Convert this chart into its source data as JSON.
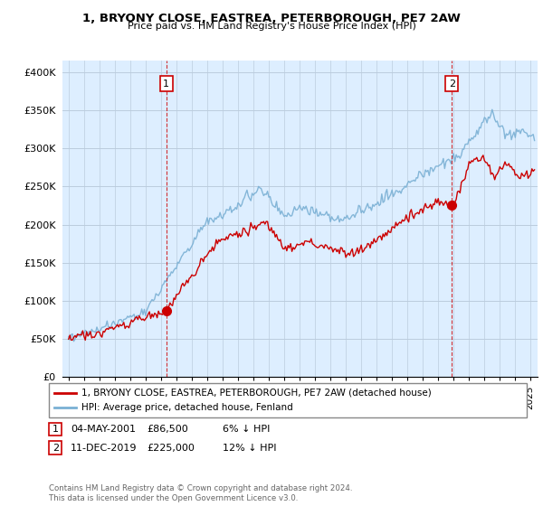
{
  "title": "1, BRYONY CLOSE, EASTREA, PETERBOROUGH, PE7 2AW",
  "subtitle": "Price paid vs. HM Land Registry's House Price Index (HPI)",
  "ylabel_ticks": [
    "£0",
    "£50K",
    "£100K",
    "£150K",
    "£200K",
    "£250K",
    "£300K",
    "£350K",
    "£400K"
  ],
  "ytick_vals": [
    0,
    50000,
    100000,
    150000,
    200000,
    250000,
    300000,
    350000,
    400000
  ],
  "ylim": [
    0,
    415000
  ],
  "xlim_start": 1994.6,
  "xlim_end": 2025.5,
  "legend_line1": "1, BRYONY CLOSE, EASTREA, PETERBOROUGH, PE7 2AW (detached house)",
  "legend_line2": "HPI: Average price, detached house, Fenland",
  "sale1_date": "04-MAY-2001",
  "sale1_price": "£86,500",
  "sale1_hpi": "6% ↓ HPI",
  "sale2_date": "11-DEC-2019",
  "sale2_price": "£225,000",
  "sale2_hpi": "12% ↓ HPI",
  "footer": "Contains HM Land Registry data © Crown copyright and database right 2024.\nThis data is licensed under the Open Government Licence v3.0.",
  "line_color_red": "#cc0000",
  "line_color_blue": "#7ab0d4",
  "background_color": "#ddeeff",
  "grid_color": "#bbccdd",
  "sale1_x": 2001.35,
  "sale1_y": 86500,
  "sale2_x": 2019.92,
  "sale2_y": 225000
}
